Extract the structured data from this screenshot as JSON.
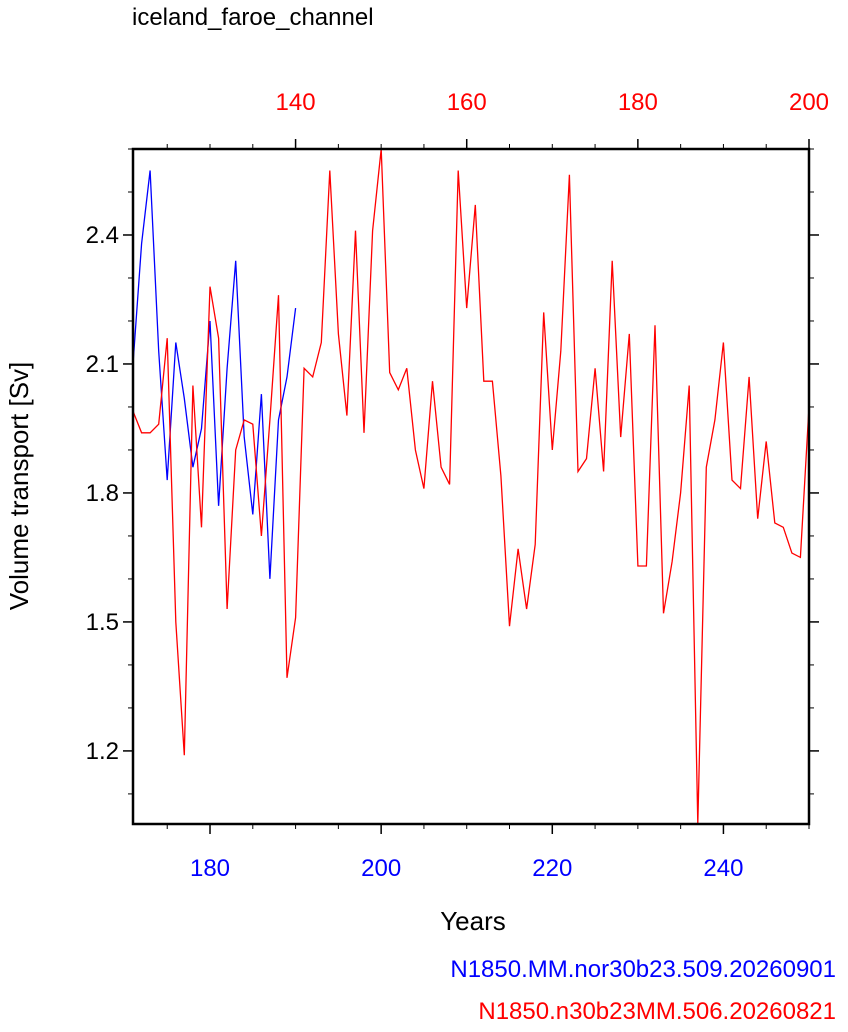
{
  "title": "iceland_faroe_channel",
  "legend": [
    {
      "label": "N1850.MM.nor30b23.509.20260901",
      "color": "#0000ff"
    },
    {
      "label": "N1850.n30b23MM.506.20260821",
      "color": "#ff0000"
    }
  ],
  "chart_data": {
    "type": "line",
    "title": "iceland_faroe_channel",
    "xlabel": "Years",
    "ylabel": "Volume transport [Sv]",
    "y_ticks": [
      "1.2",
      "1.5",
      "1.8",
      "2.1",
      "2.4"
    ],
    "ylim": [
      1.03,
      2.6
    ],
    "bottom_axis": {
      "color": "#0000ff",
      "range": [
        171,
        250
      ],
      "ticks": [
        "180",
        "200",
        "220",
        "240"
      ]
    },
    "top_axis": {
      "color": "#ff0000",
      "range": [
        121,
        200
      ],
      "ticks": [
        "140",
        "160",
        "180",
        "200"
      ]
    },
    "series": [
      {
        "name": "N1850.MM.nor30b23.509.20260901",
        "color": "#0000ff",
        "axis": "bottom",
        "x": [
          171,
          172,
          173,
          174,
          175,
          176,
          177,
          178,
          179,
          180,
          181,
          182,
          183,
          184,
          185,
          186,
          187,
          188,
          189,
          190
        ],
        "y": [
          2.1,
          2.38,
          2.55,
          2.13,
          1.83,
          2.15,
          2.02,
          1.86,
          1.95,
          2.2,
          1.77,
          2.09,
          2.34,
          1.93,
          1.75,
          2.03,
          1.6,
          1.97,
          2.07,
          2.23
        ]
      },
      {
        "name": "N1850.n30b23MM.506.20260821",
        "color": "#ff0000",
        "axis": "top",
        "x": [
          121,
          122,
          123,
          124,
          125,
          126,
          127,
          128,
          129,
          130,
          131,
          132,
          133,
          134,
          135,
          136,
          137,
          138,
          139,
          140,
          141,
          142,
          143,
          144,
          145,
          146,
          147,
          148,
          149,
          150,
          151,
          152,
          153,
          154,
          155,
          156,
          157,
          158,
          159,
          160,
          161,
          162,
          163,
          164,
          165,
          166,
          167,
          168,
          169,
          170,
          171,
          172,
          173,
          174,
          175,
          176,
          177,
          178,
          179,
          180,
          181,
          182,
          183,
          184,
          185,
          186,
          187,
          188,
          189,
          190,
          191,
          192,
          193,
          194,
          195,
          196,
          197,
          198,
          199,
          200
        ],
        "y": [
          1.99,
          1.94,
          1.94,
          1.96,
          2.16,
          1.5,
          1.19,
          2.05,
          1.72,
          2.28,
          2.16,
          1.53,
          1.9,
          1.97,
          1.96,
          1.7,
          1.97,
          2.26,
          1.37,
          1.51,
          2.09,
          2.07,
          2.15,
          2.55,
          2.17,
          1.98,
          2.41,
          1.94,
          2.41,
          2.6,
          2.08,
          2.04,
          2.09,
          1.9,
          1.81,
          2.06,
          1.86,
          1.82,
          2.55,
          2.23,
          2.47,
          2.06,
          2.06,
          1.84,
          1.49,
          1.67,
          1.53,
          1.68,
          2.22,
          1.9,
          2.13,
          2.54,
          1.85,
          1.88,
          2.09,
          1.85,
          2.34,
          1.93,
          2.17,
          1.63,
          1.63,
          2.19,
          1.52,
          1.64,
          1.8,
          2.05,
          1.03,
          1.86,
          1.97,
          2.15,
          1.83,
          1.81,
          2.07,
          1.74,
          1.92,
          1.73,
          1.72,
          1.66,
          1.65,
          2.0
        ]
      }
    ]
  }
}
